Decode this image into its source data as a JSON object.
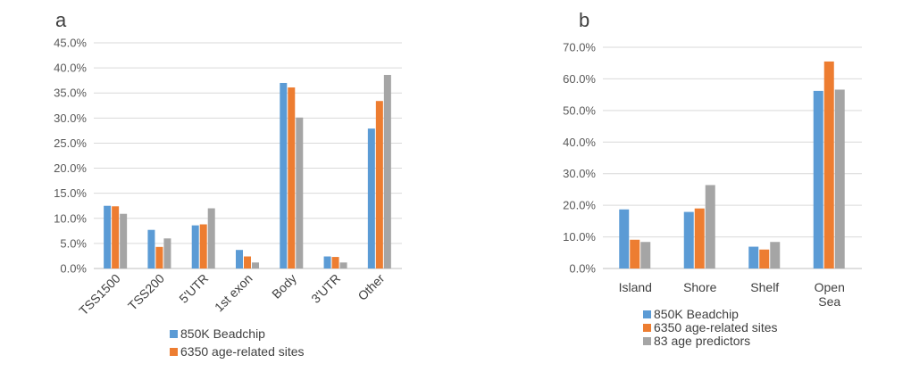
{
  "chart_data": [
    {
      "type": "bar",
      "panel_label": "a",
      "categories": [
        "TSS1500",
        "TSS200",
        "5'UTR",
        "1st exon",
        "Body",
        "3'UTR",
        "Other"
      ],
      "ylim": [
        0,
        45
      ],
      "yticks": [
        "0.0%",
        "5.0%",
        "10.0%",
        "15.0%",
        "20.0%",
        "25.0%",
        "30.0%",
        "35.0%",
        "40.0%",
        "45.0%"
      ],
      "ytick_values": [
        0,
        5,
        10,
        15,
        20,
        25,
        30,
        35,
        40,
        45
      ],
      "grid": true,
      "legend_position": "bottom",
      "series": [
        {
          "name": "850K Beadchip",
          "color": "#5b9bd5",
          "values": [
            12.5,
            7.7,
            8.6,
            3.7,
            37.0,
            2.4,
            27.9
          ]
        },
        {
          "name": "6350 age-related sites",
          "color": "#ed7d31",
          "values": [
            12.4,
            4.3,
            8.8,
            2.4,
            36.1,
            2.3,
            33.4
          ]
        },
        {
          "name": "",
          "color": "#a5a5a5",
          "values": [
            10.9,
            6.0,
            12.0,
            1.2,
            30.1,
            1.2,
            38.6
          ]
        }
      ]
    },
    {
      "type": "bar",
      "panel_label": "b",
      "categories": [
        "Island",
        "Shore",
        "Shelf",
        "Open Sea"
      ],
      "ylim": [
        0,
        70
      ],
      "yticks": [
        "0.0%",
        "10.0%",
        "20.0%",
        "30.0%",
        "40.0%",
        "50.0%",
        "60.0%",
        "70.0%"
      ],
      "ytick_values": [
        0,
        10,
        20,
        30,
        40,
        50,
        60,
        70
      ],
      "grid": true,
      "legend_position": "bottom",
      "series": [
        {
          "name": "850K Beadchip",
          "color": "#5b9bd5",
          "values": [
            18.7,
            17.9,
            6.9,
            56.2
          ]
        },
        {
          "name": "6350 age-related sites",
          "color": "#ed7d31",
          "values": [
            9.1,
            19.0,
            6.0,
            65.5
          ]
        },
        {
          "name": "83 age predictors",
          "color": "#a5a5a5",
          "values": [
            8.4,
            26.4,
            8.4,
            56.6
          ]
        }
      ]
    }
  ]
}
